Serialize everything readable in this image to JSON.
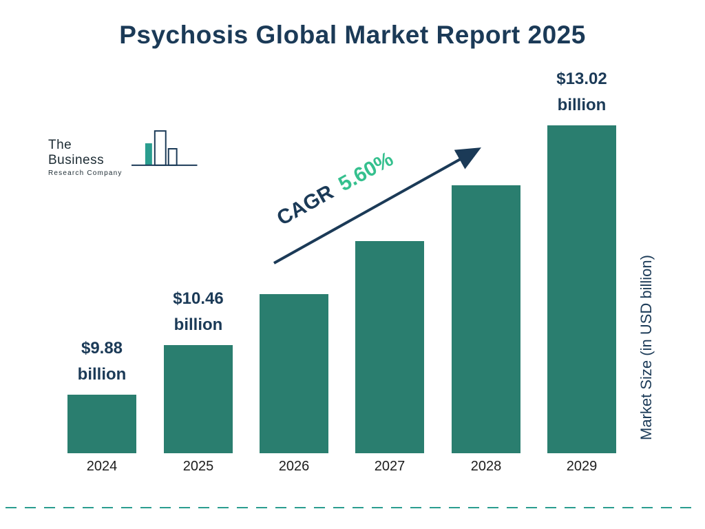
{
  "title": "Psychosis Global Market Report 2025",
  "logo": {
    "line1": "The Business",
    "line2": "Research Company"
  },
  "cagr": {
    "label": "CAGR",
    "value": "5.60%"
  },
  "right_axis_label": "Market Size (in USD billion)",
  "colors": {
    "bar": "#2a7e6f",
    "title_navy": "#1b3a57",
    "cagr_green": "#35c08e",
    "dashed_line": "#2a9d8f"
  },
  "chart_data": {
    "type": "bar",
    "title": "Psychosis Global Market Report 2025",
    "categories": [
      "2024",
      "2025",
      "2026",
      "2027",
      "2028",
      "2029"
    ],
    "values": [
      9.88,
      10.46,
      11.05,
      11.67,
      12.32,
      13.02
    ],
    "values_estimated_indices": [
      2,
      3,
      4
    ],
    "value_labels": [
      {
        "index": 0,
        "line1": "$9.88",
        "line2": "billion"
      },
      {
        "index": 1,
        "line1": "$10.46",
        "line2": "billion"
      },
      {
        "index": 5,
        "line1": "$13.02",
        "line2": "billion"
      }
    ],
    "ylabel": "Market Size (in USD billion)",
    "annotation": "CAGR 5.60%",
    "bar_color": "#2a7e6f",
    "visual_baseline": 9.2,
    "legend": "none",
    "grid": "off"
  }
}
